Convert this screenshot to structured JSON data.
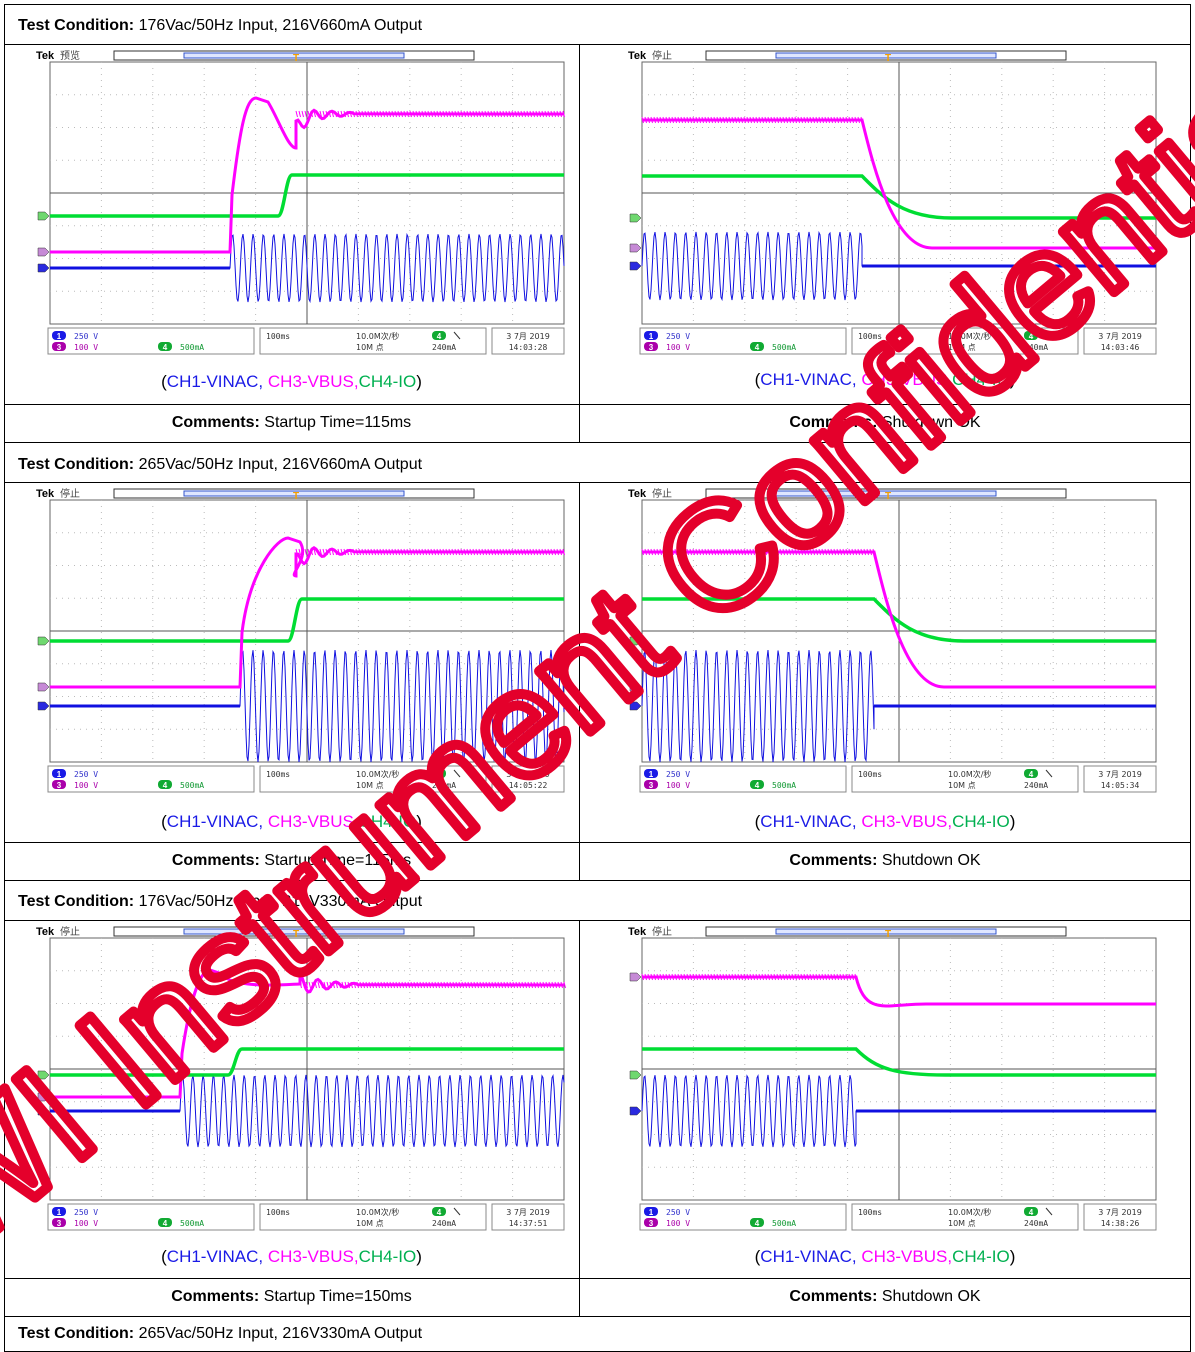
{
  "sections": [
    {
      "condition_label": "Test Condition:",
      "condition": "176Vac/50Hz Input, 216V660mA Output",
      "captures": [
        {
          "status": "预览",
          "time": "14:03:28",
          "comment_label": "Comments:",
          "comment": "Startup Time=115ms"
        },
        {
          "status": "停止",
          "time": "14:03:46",
          "comment_label": "Comments:",
          "comment": "Shutdown OK"
        }
      ]
    },
    {
      "condition_label": "Test Condition:",
      "condition": "265Vac/50Hz Input, 216V660mA Output",
      "captures": [
        {
          "status": "停止",
          "time": "14:05:22",
          "comment_label": "Comments:",
          "comment": "Startup Time=115ms"
        },
        {
          "status": "停止",
          "time": "14:05:34",
          "comment_label": "Comments:",
          "comment": "Shutdown OK"
        }
      ]
    },
    {
      "condition_label": "Test Condition:",
      "condition": "176Vac/50Hz Input, 216V330mA Output",
      "captures": [
        {
          "status": "停止",
          "time": "14:37:51",
          "comment_label": "Comments:",
          "comment": "Startup Time=150ms"
        },
        {
          "status": "停止",
          "time": "14:38:26",
          "comment_label": "Comments:",
          "comment": "Shutdown OK"
        }
      ]
    },
    {
      "condition_label": "Test Condition:",
      "condition": "265Vac/50Hz Input, 216V330mA Output",
      "captures": []
    }
  ],
  "scope": {
    "brand": "Tek",
    "ch1_scale": "250 V",
    "ch3_scale": "100 V",
    "ch4_scale": "500mA",
    "ch1_num": "1",
    "ch3_num": "3",
    "ch4_num": "4",
    "timebase": "100ms",
    "sample_rate": "10.0M次/秒",
    "record_length": "10M 点",
    "trigger_level": "240mA",
    "date": "3 7月 2019",
    "trigger_marker": "T"
  },
  "legend": {
    "open": "(",
    "ch1": "CH1-VINAC,",
    "ch3": "CH3-VBUS,",
    "ch4": "CH4-IO",
    "close": ")"
  },
  "watermark": "WI Instrument Confidential",
  "colors": {
    "ch1": "#1010e0",
    "ch3": "#ff00ff",
    "ch4": "#00dd33",
    "watermark": "#e4002b"
  }
}
